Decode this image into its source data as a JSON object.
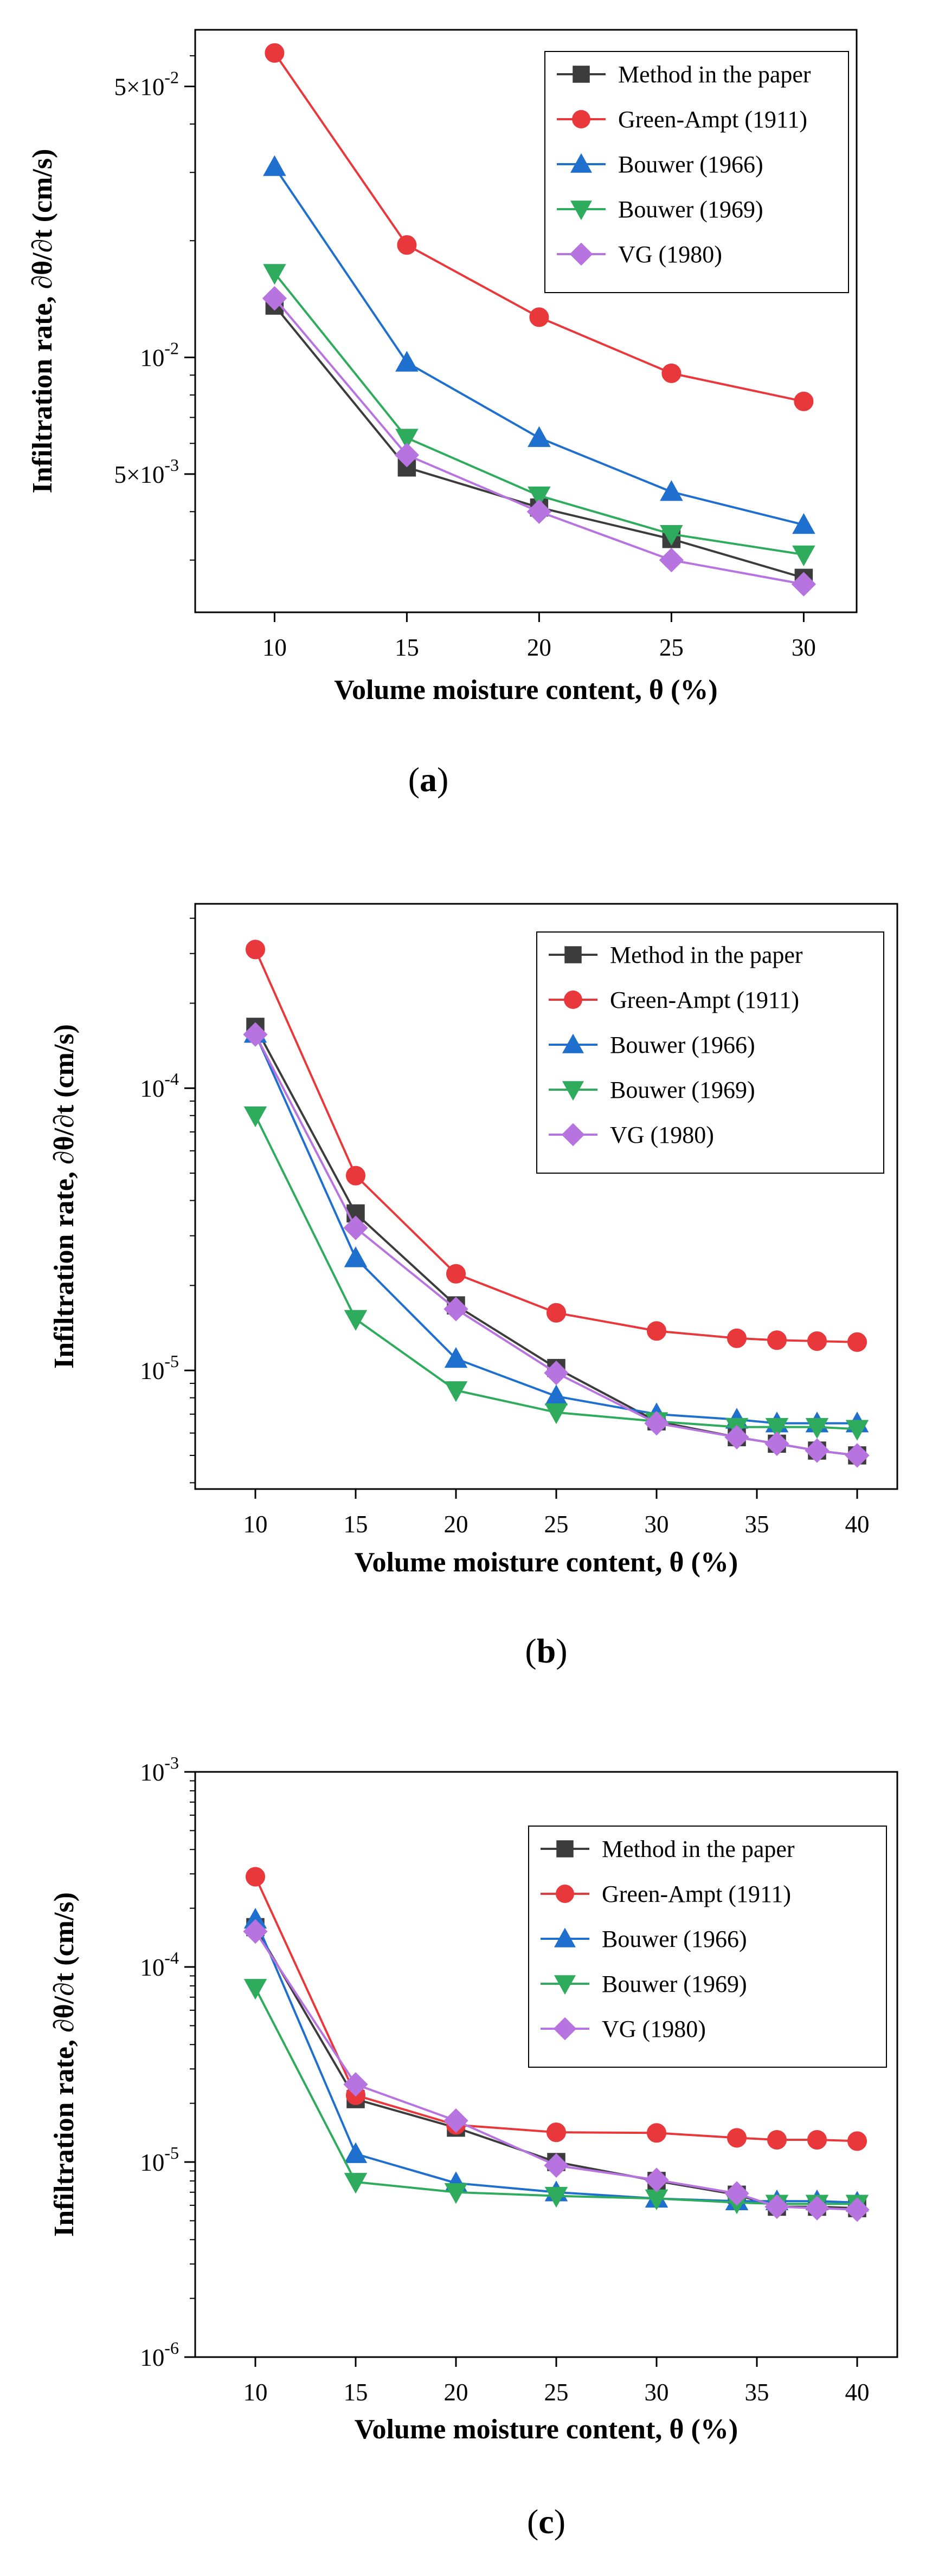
{
  "chart_data": [
    {
      "type": "line",
      "panel_label": "a",
      "yscale": "log",
      "xlabel": "Volume moisture content, θ (%)",
      "ylabel": "Infiltration rate, ∂θ/∂t (cm/s)",
      "xlim": [
        7,
        32
      ],
      "ylim": [
        0.0022,
        0.07
      ],
      "x": [
        10,
        15,
        20,
        25,
        30
      ],
      "xticks": [
        {
          "value": 10,
          "label": "10"
        },
        {
          "value": 15,
          "label": "15"
        },
        {
          "value": 20,
          "label": "20"
        },
        {
          "value": 25,
          "label": "25"
        },
        {
          "value": 30,
          "label": "30"
        }
      ],
      "yticks": [
        {
          "value": 0.005,
          "mantissa": "5×10",
          "exp": "-3"
        },
        {
          "value": 0.01,
          "mantissa": "10",
          "exp": "-2"
        },
        {
          "value": 0.05,
          "mantissa": "5×10",
          "exp": "-2"
        }
      ],
      "legend_position": "top-right",
      "series": [
        {
          "name": "Method in the paper",
          "color": "#3c3c3c",
          "marker": "square",
          "values": [
            0.0136,
            0.0052,
            0.0041,
            0.0034,
            0.0027
          ]
        },
        {
          "name": "Green-Ampt (1911)",
          "color": "#e8383b",
          "marker": "circle",
          "values": [
            0.061,
            0.0195,
            0.0127,
            0.0091,
            0.0077
          ]
        },
        {
          "name": "Bouwer (1966)",
          "color": "#1f6fce",
          "marker": "triangle-up",
          "values": [
            0.031,
            0.0097,
            0.0062,
            0.0045,
            0.0037
          ]
        },
        {
          "name": "Bouwer (1969)",
          "color": "#2eab5c",
          "marker": "triangle-down",
          "values": [
            0.0165,
            0.0062,
            0.0044,
            0.0035,
            0.0031
          ]
        },
        {
          "name": "VG (1980)",
          "color": "#b773e0",
          "marker": "diamond",
          "values": [
            0.0142,
            0.0056,
            0.004,
            0.003,
            0.0026
          ]
        }
      ]
    },
    {
      "type": "line",
      "panel_label": "b",
      "yscale": "log",
      "xlabel": "Volume moisture content, θ (%)",
      "ylabel": "Infiltration rate, ∂θ/∂t (cm/s)",
      "xlim": [
        7,
        42
      ],
      "ylim": [
        3.8e-06,
        0.00045
      ],
      "x": [
        10,
        15,
        20,
        25,
        30,
        34,
        36,
        38,
        40
      ],
      "xticks": [
        {
          "value": 10,
          "label": "10"
        },
        {
          "value": 15,
          "label": "15"
        },
        {
          "value": 20,
          "label": "20"
        },
        {
          "value": 25,
          "label": "25"
        },
        {
          "value": 30,
          "label": "30"
        },
        {
          "value": 35,
          "label": "35"
        },
        {
          "value": 40,
          "label": "40"
        }
      ],
      "yticks": [
        {
          "value": 1e-05,
          "mantissa": "10",
          "exp": "-5"
        },
        {
          "value": 0.0001,
          "mantissa": "10",
          "exp": "-4"
        }
      ],
      "legend_position": "top-right",
      "series": [
        {
          "name": "Method in the paper",
          "color": "#3c3c3c",
          "marker": "square",
          "values": [
            0.000165,
            3.6e-05,
            1.7e-05,
            1.02e-05,
            6.6e-06,
            5.8e-06,
            5.5e-06,
            5.2e-06,
            5e-06
          ]
        },
        {
          "name": "Green-Ampt (1911)",
          "color": "#e8383b",
          "marker": "circle",
          "values": [
            0.00031,
            4.9e-05,
            2.2e-05,
            1.6e-05,
            1.38e-05,
            1.3e-05,
            1.28e-05,
            1.27e-05,
            1.26e-05
          ]
        },
        {
          "name": "Bouwer (1966)",
          "color": "#1f6fce",
          "marker": "triangle-up",
          "values": [
            0.000156,
            2.5e-05,
            1.1e-05,
            8.1e-06,
            7e-06,
            6.7e-06,
            6.5e-06,
            6.5e-06,
            6.5e-06
          ]
        },
        {
          "name": "Bouwer (1969)",
          "color": "#2eab5c",
          "marker": "triangle-down",
          "values": [
            8e-05,
            1.52e-05,
            8.5e-06,
            7.1e-06,
            6.6e-06,
            6.3e-06,
            6.3e-06,
            6.3e-06,
            6.2e-06
          ]
        },
        {
          "name": "VG (1980)",
          "color": "#b773e0",
          "marker": "diamond",
          "values": [
            0.000155,
            3.2e-05,
            1.65e-05,
            9.8e-06,
            6.5e-06,
            5.8e-06,
            5.5e-06,
            5.2e-06,
            5e-06
          ]
        }
      ]
    },
    {
      "type": "line",
      "panel_label": "c",
      "yscale": "log",
      "xlabel": "Volume moisture content, θ (%)",
      "ylabel": "Infiltration rate, ∂θ/∂t (cm/s)",
      "xlim": [
        7,
        42
      ],
      "ylim": [
        1e-06,
        0.001
      ],
      "x": [
        10,
        15,
        20,
        25,
        30,
        34,
        36,
        38,
        40
      ],
      "xticks": [
        {
          "value": 10,
          "label": "10"
        },
        {
          "value": 15,
          "label": "15"
        },
        {
          "value": 20,
          "label": "20"
        },
        {
          "value": 25,
          "label": "25"
        },
        {
          "value": 30,
          "label": "30"
        },
        {
          "value": 35,
          "label": "35"
        },
        {
          "value": 40,
          "label": "40"
        }
      ],
      "yticks": [
        {
          "value": 1e-06,
          "mantissa": "10",
          "exp": "-6"
        },
        {
          "value": 1e-05,
          "mantissa": "10",
          "exp": "-5"
        },
        {
          "value": 0.0001,
          "mantissa": "10",
          "exp": "-4"
        },
        {
          "value": 0.001,
          "mantissa": "10",
          "exp": "-3"
        }
      ],
      "legend_position": "top-right",
      "series": [
        {
          "name": "Method in the paper",
          "color": "#3c3c3c",
          "marker": "square",
          "values": [
            0.00016,
            2.1e-05,
            1.5e-05,
            1e-05,
            8e-06,
            6.8e-06,
            5.9e-06,
            5.9e-06,
            5.8e-06
          ]
        },
        {
          "name": "Green-Ampt (1911)",
          "color": "#e8383b",
          "marker": "circle",
          "values": [
            0.00029,
            2.2e-05,
            1.55e-05,
            1.42e-05,
            1.41e-05,
            1.33e-05,
            1.3e-05,
            1.3e-05,
            1.28e-05
          ]
        },
        {
          "name": "Bouwer (1966)",
          "color": "#1f6fce",
          "marker": "triangle-up",
          "values": [
            0.000175,
            1.1e-05,
            7.8e-06,
            7e-06,
            6.5e-06,
            6.3e-06,
            6.3e-06,
            6.3e-06,
            6.2e-06
          ]
        },
        {
          "name": "Bouwer (1969)",
          "color": "#2eab5c",
          "marker": "triangle-down",
          "values": [
            7.8e-05,
            7.9e-06,
            7e-06,
            6.7e-06,
            6.5e-06,
            6.2e-06,
            6.1e-06,
            6.1e-06,
            6.1e-06
          ]
        },
        {
          "name": "VG (1980)",
          "color": "#b773e0",
          "marker": "diamond",
          "values": [
            0.000152,
            2.5e-05,
            1.63e-05,
            9.6e-06,
            8.1e-06,
            6.9e-06,
            5.9e-06,
            5.8e-06,
            5.7e-06
          ]
        }
      ]
    }
  ]
}
